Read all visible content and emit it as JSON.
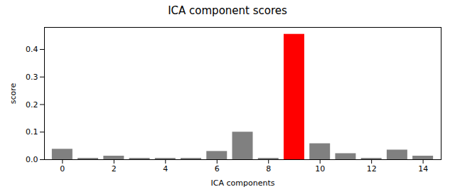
{
  "chart_data": {
    "type": "bar",
    "title": "ICA component scores",
    "xlabel": "ICA components",
    "ylabel": "score",
    "categories": [
      0,
      1,
      2,
      3,
      4,
      5,
      6,
      7,
      8,
      9,
      10,
      11,
      12,
      13,
      14
    ],
    "values": [
      0.038,
      0.005,
      0.013,
      0.005,
      0.005,
      0.005,
      0.03,
      0.1,
      0.005,
      0.455,
      0.058,
      0.022,
      0.005,
      0.035,
      0.013
    ],
    "colors": [
      "#808080",
      "#808080",
      "#808080",
      "#808080",
      "#808080",
      "#808080",
      "#808080",
      "#808080",
      "#808080",
      "#ff0000",
      "#808080",
      "#808080",
      "#808080",
      "#808080",
      "#808080"
    ],
    "xlim": [
      -0.7,
      14.7
    ],
    "xticks": [
      0,
      2,
      4,
      6,
      8,
      10,
      12,
      14
    ],
    "ylim": [
      0,
      0.48
    ],
    "yticks": [
      {
        "value": 0,
        "label": "0.0"
      },
      0.1,
      0.2,
      0.3,
      0.4
    ]
  }
}
